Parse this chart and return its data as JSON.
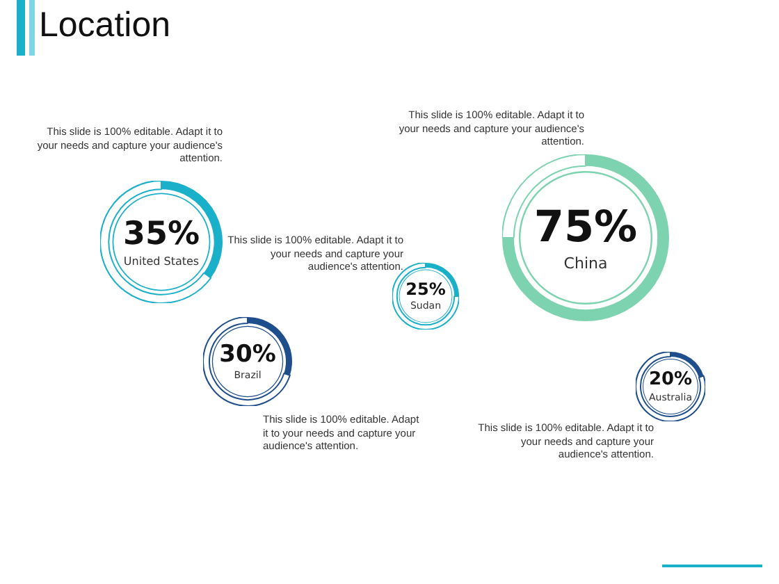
{
  "chart_data": [
    {
      "type": "other",
      "title": "Location"
    },
    {
      "type": "donut",
      "categories": [
        "United States",
        null
      ],
      "values": [
        35,
        65
      ],
      "colors": [
        "#1ab0c9",
        "#ffffff"
      ],
      "value_labels": [
        "35%",
        null
      ],
      "annotations": [
        "This slide is 100% editable. Adapt it to your needs and capture your audience's attention."
      ]
    },
    {
      "type": "donut",
      "categories": [
        "Brazil",
        null
      ],
      "values": [
        30,
        70
      ],
      "colors": [
        "#1f4e8c",
        "#ffffff"
      ],
      "value_labels": [
        "30%",
        null
      ],
      "annotations": [
        "This slide is 100% editable. Adapt it to your needs and capture your audience's attention."
      ]
    },
    {
      "type": "donut",
      "categories": [
        "Sudan",
        null
      ],
      "values": [
        25,
        75
      ],
      "colors": [
        "#1ab0c9",
        "#ffffff"
      ],
      "value_labels": [
        "25%",
        null
      ],
      "annotations": [
        "This slide is 100% editable. Adapt it to your needs and capture your audience's attention."
      ]
    },
    {
      "type": "donut",
      "categories": [
        "China",
        null
      ],
      "values": [
        75,
        25
      ],
      "colors": [
        "#7dd3b0",
        "#ffffff"
      ],
      "value_labels": [
        "75%",
        null
      ],
      "annotations": [
        "This slide is 100% editable. Adapt it to your needs and capture your audience's attention."
      ]
    },
    {
      "type": "donut",
      "categories": [
        "Australia",
        null
      ],
      "values": [
        20,
        80
      ],
      "colors": [
        "#1f4e8c",
        "#ffffff"
      ],
      "value_labels": [
        "20%",
        null
      ],
      "annotations": [
        "This slide is 100% editable. Adapt it to your needs and capture your audience's attention."
      ]
    }
  ]
}
